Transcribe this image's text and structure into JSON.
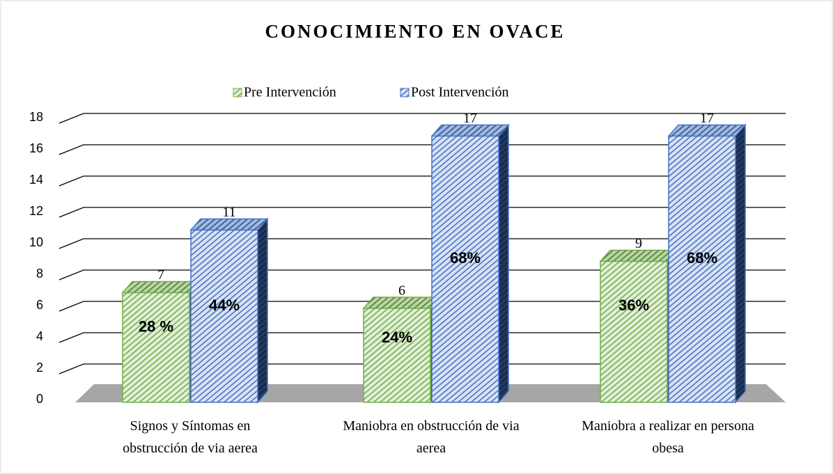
{
  "chart_data": {
    "type": "bar3d",
    "title": "CONOCIMIENTO EN OVACE",
    "categories": [
      "Signos y Síntomas en obstrucción de via aerea",
      "Maniobra en obstrucción de via aerea",
      "Maniobra a realizar en persona obesa"
    ],
    "series": [
      {
        "name": "Pre Intervención",
        "color": "#70ad47",
        "values": [
          7,
          6,
          9
        ],
        "percents": [
          28,
          24,
          36
        ],
        "percent_labels": [
          "28 %",
          "24%",
          "36%"
        ]
      },
      {
        "name": "Post Intervención",
        "color": "#4472c4",
        "values": [
          11,
          17,
          17
        ],
        "percents": [
          44,
          68,
          68
        ],
        "percent_labels": [
          "44%",
          "68%",
          "68%"
        ]
      }
    ],
    "ylim": [
      0,
      18
    ],
    "yticks": [
      0,
      2,
      4,
      6,
      8,
      10,
      12,
      14,
      16,
      18
    ],
    "grid": true,
    "legend": "top"
  }
}
